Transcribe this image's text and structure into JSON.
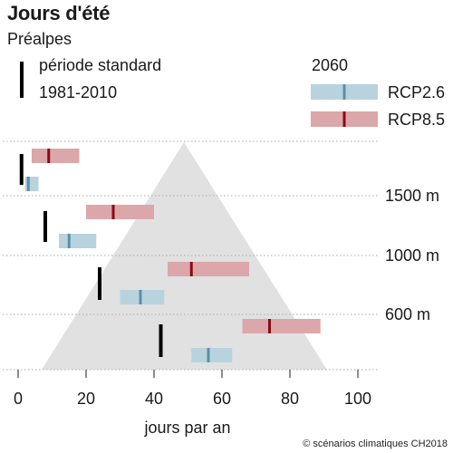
{
  "title": "Jours d'été",
  "subtitle": "Préalpes",
  "legend": {
    "standard_line1": "période standard",
    "standard_line2": "1981-2010",
    "scenario_title": "2060",
    "rcp26": "RCP2.6",
    "rcp85": "RCP8.5"
  },
  "credit": "© scénarios climatiques CH2018",
  "colors": {
    "rcp26_band": "#b8d3dd",
    "rcp26_median": "#5a8fa8",
    "rcp85_band": "#dba7aa",
    "rcp85_median": "#8b0a12",
    "standard": "#000000",
    "mountain": "#e1e1e1",
    "gridline": "#aaaaaa"
  },
  "chart_data": {
    "type": "range",
    "xlabel": "jours par an",
    "xlim": [
      0,
      100
    ],
    "xticks": [
      0,
      20,
      40,
      60,
      80,
      100
    ],
    "altitude_labels": [
      "1500 m",
      "1000 m",
      "600 m"
    ],
    "series_names": [
      "période standard 1981-2010",
      "RCP2.6",
      "RCP8.5"
    ],
    "levels": [
      {
        "standard": 1,
        "rcp26": {
          "low": 2,
          "median": 3,
          "high": 6
        },
        "rcp85": {
          "low": 4,
          "median": 9,
          "high": 18
        }
      },
      {
        "standard": 8,
        "rcp26": {
          "low": 12,
          "median": 15,
          "high": 23
        },
        "rcp85": {
          "low": 20,
          "median": 28,
          "high": 40
        }
      },
      {
        "standard": 24,
        "rcp26": {
          "low": 30,
          "median": 36,
          "high": 43
        },
        "rcp85": {
          "low": 44,
          "median": 51,
          "high": 68
        }
      },
      {
        "standard": 42,
        "rcp26": {
          "low": 51,
          "median": 56,
          "high": 63
        },
        "rcp85": {
          "low": 66,
          "median": 74,
          "high": 89
        }
      }
    ]
  }
}
